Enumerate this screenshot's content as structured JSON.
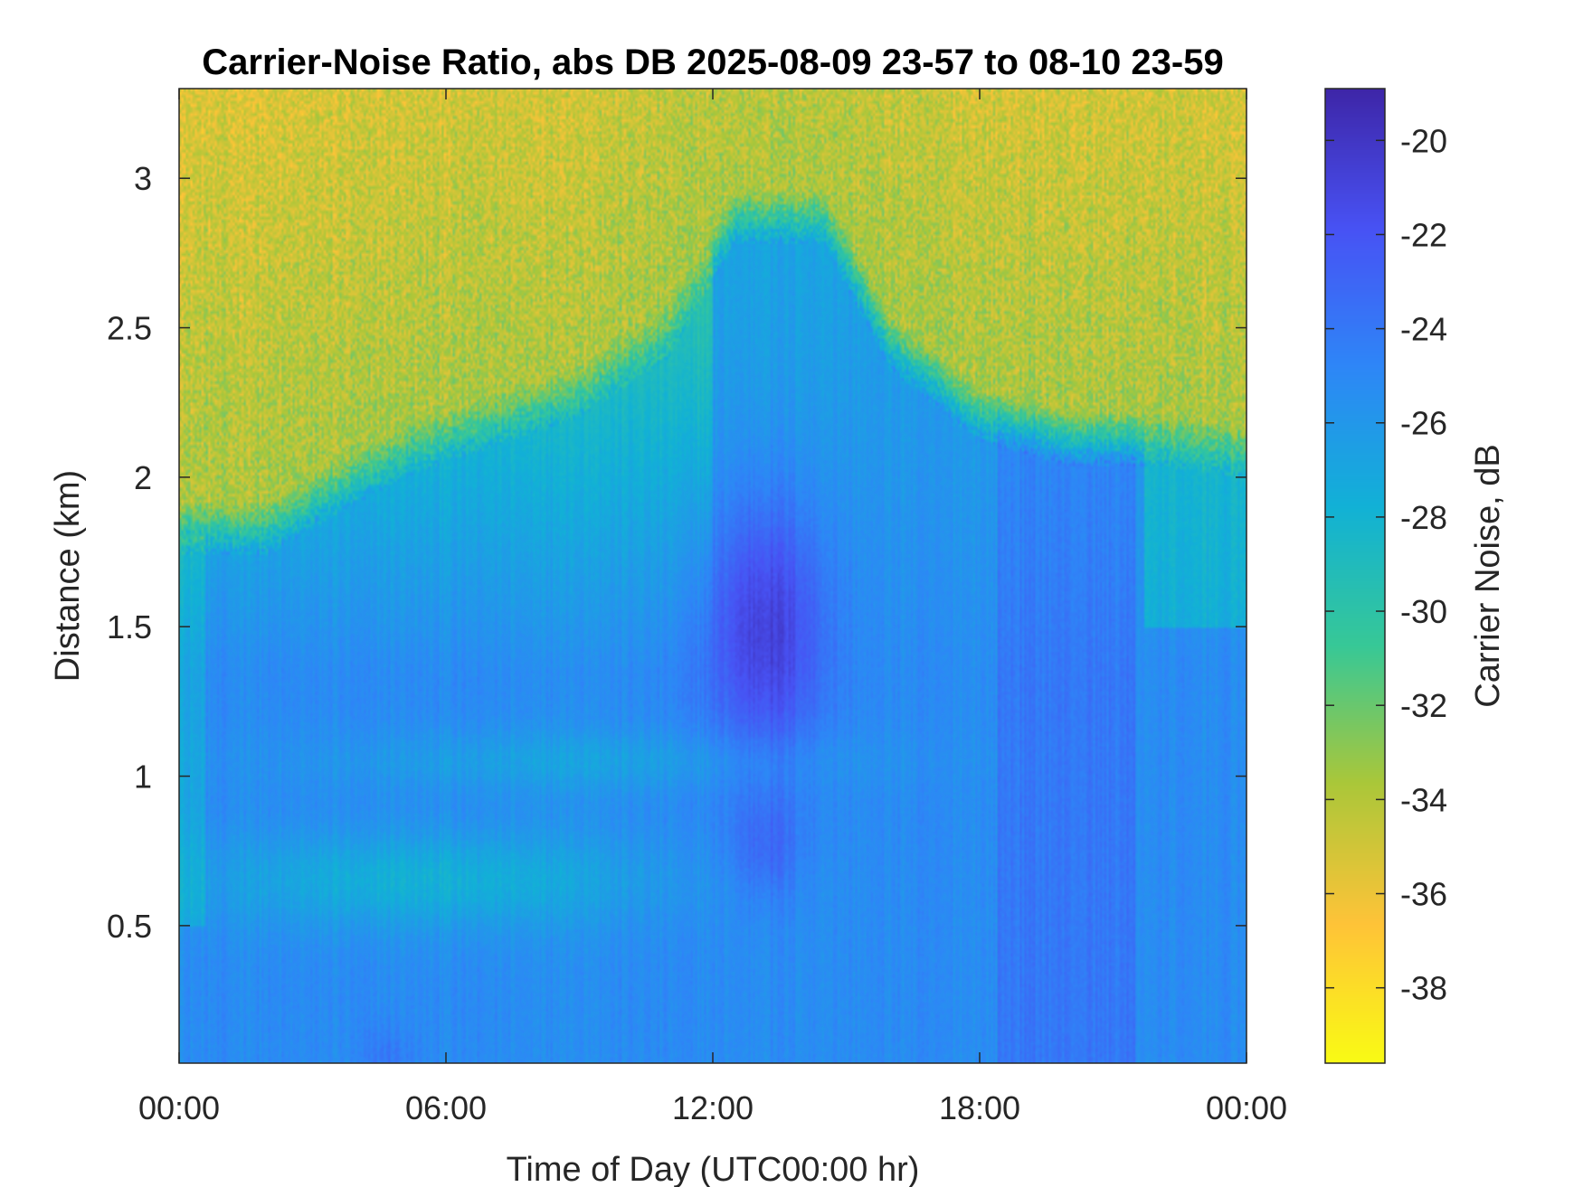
{
  "chart_data": {
    "type": "heatmap",
    "title": "Carrier-Noise Ratio, abs DB 2025-08-09 23-57 to 08-10 23-59",
    "xlabel": "Time of Day (UTC00:00 hr)",
    "ylabel": "Distance (km)",
    "colorbar_label": "Carrier Noise, dB",
    "x_ticks": [
      "00:00",
      "06:00",
      "12:00",
      "18:00",
      "00:00"
    ],
    "x_tick_hours": [
      0,
      6,
      12,
      18,
      24
    ],
    "xlim_hours": [
      0,
      24
    ],
    "y_ticks": [
      "0.5",
      "1",
      "1.5",
      "2",
      "2.5",
      "3"
    ],
    "y_tick_values": [
      0.5,
      1,
      1.5,
      2,
      2.5,
      3
    ],
    "ylim": [
      0.04,
      3.3
    ],
    "colorbar_ticks": [
      "-20",
      "-22",
      "-24",
      "-26",
      "-28",
      "-30",
      "-32",
      "-34",
      "-36",
      "-38"
    ],
    "colorbar_tick_values": [
      -20,
      -22,
      -24,
      -26,
      -28,
      -30,
      -32,
      -34,
      -36,
      -38
    ],
    "clim": [
      -39.6,
      -18.9
    ],
    "colormap": "parula-reversed",
    "colors": {
      "low": "#f9fb0e",
      "mid": "#1fb3b5",
      "high": "#3e26a8"
    },
    "grid": false,
    "features": [
      {
        "description_hours": [
          0,
          24
        ],
        "distance_km": [
          0.04,
          1.75
        ],
        "value_db": -25
      },
      {
        "description_hours": [
          12,
          15
        ],
        "distance_km": [
          1.1,
          1.9
        ],
        "value_db": -20.5
      },
      {
        "description_hours": [
          0,
          24
        ],
        "distance_km": [
          2.0,
          3.3
        ],
        "value_db": -34
      }
    ]
  }
}
